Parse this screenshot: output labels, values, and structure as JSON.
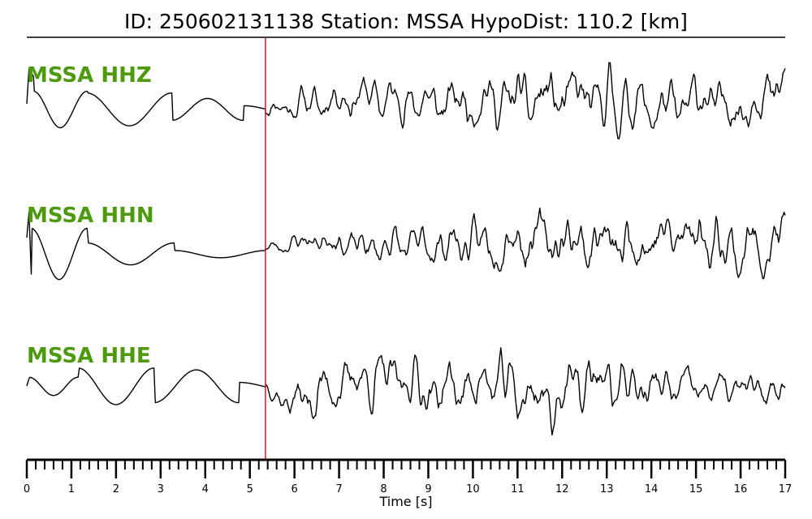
{
  "title": {
    "text": "ID: 250602131138   Station: MSSA   HypoDist:   110.2 [km]"
  },
  "colors": {
    "label": "#4d9a0f",
    "trace": "#000000",
    "pick": "#e8141b",
    "axis": "#000000"
  },
  "chart_data": {
    "type": "line",
    "xlabel": "Time [s]",
    "xlim": [
      0,
      17
    ],
    "major_ticks": [
      0,
      1,
      2,
      3,
      4,
      5,
      6,
      7,
      8,
      9,
      10,
      11,
      12,
      13,
      14,
      15,
      16,
      17
    ],
    "tick_labels": [
      "0",
      "1",
      "2",
      "3",
      "4",
      "5",
      "6",
      "7",
      "8",
      "9",
      "10",
      "11",
      "12",
      "13",
      "14",
      "15",
      "16",
      "17"
    ],
    "minor_step": 0.2,
    "pick_time": 5.35,
    "series": [
      {
        "name": "MSSA HHZ",
        "pre_pick": {
          "onset": [
            [
              0.0,
              0.0
            ],
            [
              0.05,
              0.95
            ],
            [
              0.15,
              0.75
            ]
          ],
          "periods": [
            1.2,
            1.9,
            1.6
          ],
          "amplitudes": [
            0.5,
            0.45,
            0.3
          ],
          "baseline": -0.15
        },
        "post_pick": {
          "type": "noise",
          "seed": 11,
          "envelope": [
            [
              5.35,
              0.3
            ],
            [
              6.5,
              0.6
            ],
            [
              8.0,
              0.7
            ],
            [
              10.5,
              0.9
            ],
            [
              11.6,
              1.1
            ],
            [
              14.0,
              0.9
            ],
            [
              17.0,
              1.0
            ]
          ],
          "trend": [
            [
              5.35,
              -0.3
            ],
            [
              7.5,
              0.4
            ],
            [
              9.0,
              0.0
            ],
            [
              10.0,
              0.1
            ],
            [
              11.0,
              0.2
            ],
            [
              12.5,
              0.3
            ],
            [
              14.5,
              -0.4
            ],
            [
              15.0,
              0.3
            ],
            [
              16.0,
              -0.2
            ],
            [
              17.0,
              0.9
            ]
          ]
        }
      },
      {
        "name": "MSSA HHN",
        "pre_pick": {
          "onset": [
            [
              0.0,
              0.2
            ],
            [
              0.05,
              0.9
            ],
            [
              0.1,
              -0.8
            ]
          ],
          "periods": [
            1.25,
            1.95
          ],
          "amplitudes": [
            0.7,
            0.3
          ],
          "baseline": -0.25
        },
        "post_pick": {
          "type": "noise",
          "seed": 23,
          "envelope": [
            [
              5.35,
              0.2
            ],
            [
              7.0,
              0.5
            ],
            [
              9.0,
              0.7
            ],
            [
              11.0,
              0.9
            ],
            [
              14.0,
              1.0
            ],
            [
              17.0,
              1.0
            ]
          ],
          "trend": [
            [
              5.35,
              -0.2
            ],
            [
              6.5,
              0.3
            ],
            [
              7.5,
              -0.1
            ],
            [
              9.5,
              0.0
            ],
            [
              11.5,
              0.3
            ],
            [
              13.5,
              0.0
            ],
            [
              15.0,
              0.6
            ],
            [
              16.0,
              -0.3
            ],
            [
              17.0,
              0.3
            ]
          ]
        }
      },
      {
        "name": "MSSA HHE",
        "pre_pick": {
          "onset": [
            [
              0.0,
              0.0
            ],
            [
              0.05,
              0.2
            ]
          ],
          "periods": [
            1.1,
            1.7,
            1.9
          ],
          "amplitudes": [
            0.25,
            0.5,
            0.45
          ],
          "baseline": 0.0
        },
        "post_pick": {
          "type": "noise",
          "seed": 37,
          "envelope": [
            [
              5.35,
              0.3
            ],
            [
              6.5,
              0.9
            ],
            [
              8.0,
              0.8
            ],
            [
              11.0,
              1.0
            ],
            [
              12.5,
              1.0
            ],
            [
              15.0,
              0.6
            ],
            [
              17.0,
              0.5
            ]
          ],
          "trend": [
            [
              5.35,
              0.0
            ],
            [
              5.9,
              -0.9
            ],
            [
              7.3,
              0.3
            ],
            [
              8.5,
              0.4
            ],
            [
              9.0,
              -0.3
            ],
            [
              10.5,
              0.2
            ],
            [
              11.7,
              -0.8
            ],
            [
              12.6,
              0.3
            ],
            [
              14.0,
              -0.1
            ],
            [
              17.0,
              -0.2
            ]
          ]
        }
      }
    ]
  }
}
